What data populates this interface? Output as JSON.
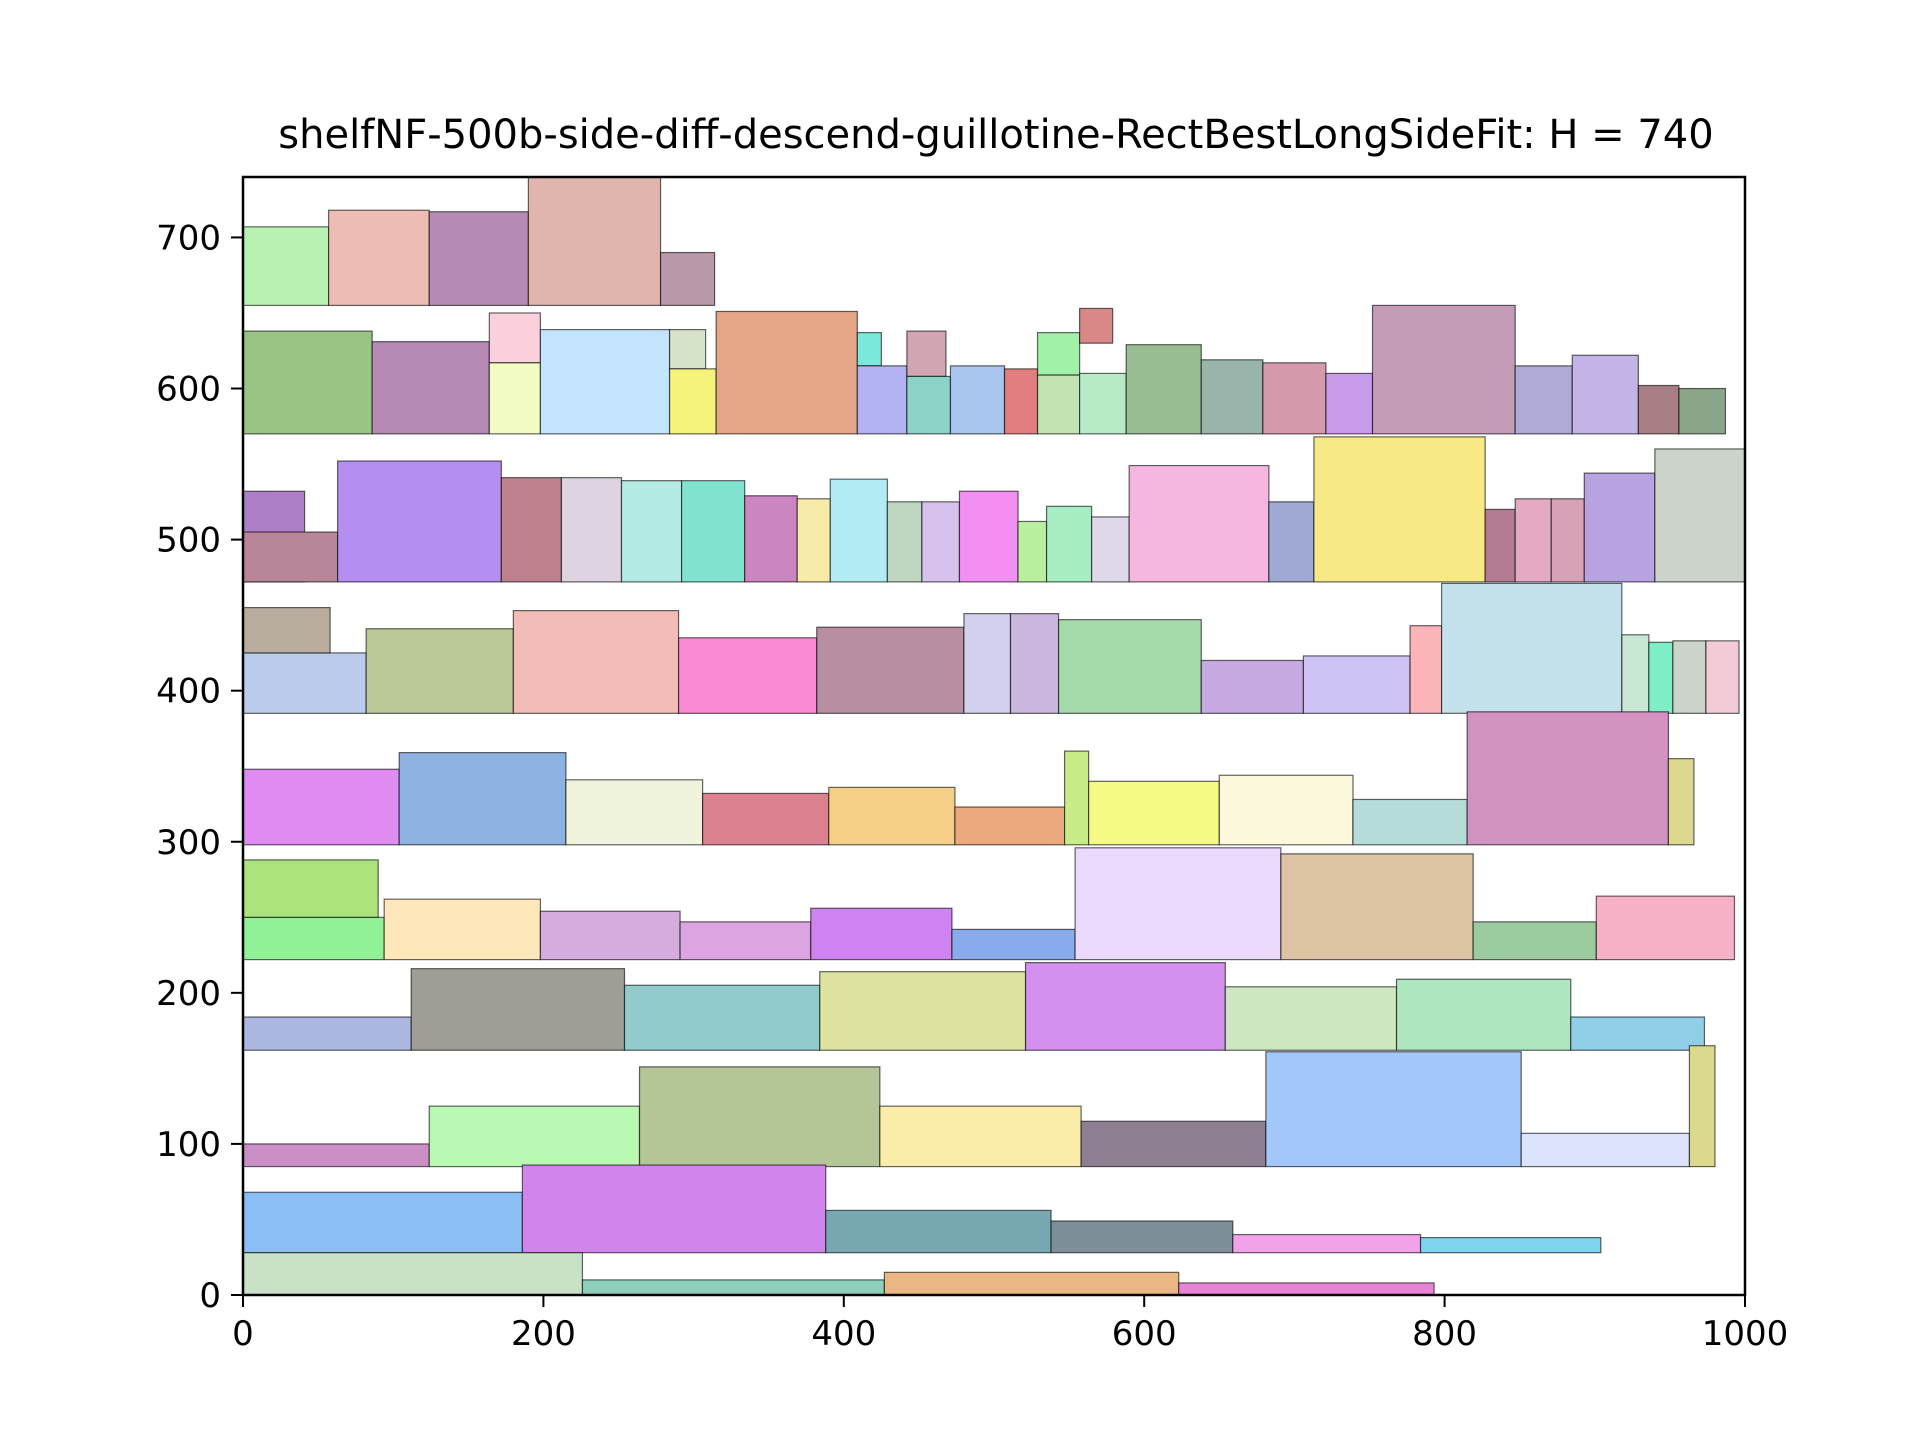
{
  "chart_data": {
    "type": "rectangle-packing",
    "title": "shelfNF-500b-side-diff-descend-guillotine-RectBestLongSideFit: H = 740",
    "xlabel": "",
    "ylabel": "",
    "xlim": [
      0,
      1000
    ],
    "ylim": [
      0,
      740
    ],
    "x_ticks": [
      "0",
      "200",
      "400",
      "600",
      "800",
      "1000"
    ],
    "y_ticks": [
      "0",
      "100",
      "200",
      "300",
      "400",
      "500",
      "600",
      "700"
    ],
    "grid": false,
    "rects": [
      {
        "x": 0,
        "y": 655,
        "w": 57,
        "h": 52,
        "color": "#b7f2b2"
      },
      {
        "x": 57,
        "y": 655,
        "w": 67,
        "h": 63,
        "color": "#edbcb4"
      },
      {
        "x": 124,
        "y": 655,
        "w": 66,
        "h": 62,
        "color": "#b58bb6"
      },
      {
        "x": 190,
        "y": 655,
        "w": 88,
        "h": 85,
        "color": "#dfb5ae"
      },
      {
        "x": 278,
        "y": 655,
        "w": 36,
        "h": 35,
        "color": "#b898a9"
      },
      {
        "x": 0,
        "y": 570,
        "w": 86,
        "h": 68,
        "color": "#98c583"
      },
      {
        "x": 86,
        "y": 570,
        "w": 78,
        "h": 61,
        "color": "#b58bb6"
      },
      {
        "x": 164,
        "y": 617,
        "w": 34,
        "h": 33,
        "color": "#f9d0dc"
      },
      {
        "x": 164,
        "y": 570,
        "w": 34,
        "h": 47,
        "color": "#f2fbc3"
      },
      {
        "x": 198,
        "y": 570,
        "w": 86,
        "h": 69,
        "color": "#c3e3fe"
      },
      {
        "x": 284,
        "y": 613,
        "w": 24,
        "h": 26,
        "color": "#d6e3c8"
      },
      {
        "x": 284,
        "y": 570,
        "w": 31,
        "h": 43,
        "color": "#f6f37c"
      },
      {
        "x": 315,
        "y": 570,
        "w": 94,
        "h": 81,
        "color": "#e4a686"
      },
      {
        "x": 409,
        "y": 615,
        "w": 16,
        "h": 22,
        "color": "#7ce8dc"
      },
      {
        "x": 409,
        "y": 570,
        "w": 33,
        "h": 45,
        "color": "#b3b3f2"
      },
      {
        "x": 442,
        "y": 608,
        "w": 26,
        "h": 30,
        "color": "#d2a5b3"
      },
      {
        "x": 442,
        "y": 570,
        "w": 29,
        "h": 38,
        "color": "#8bd3c6"
      },
      {
        "x": 471,
        "y": 570,
        "w": 36,
        "h": 45,
        "color": "#a8c6ee"
      },
      {
        "x": 507,
        "y": 570,
        "w": 22,
        "h": 43,
        "color": "#e27d80"
      },
      {
        "x": 529,
        "y": 570,
        "w": 28,
        "h": 39,
        "color": "#c2e4b2"
      },
      {
        "x": 529,
        "y": 609,
        "w": 28,
        "h": 28,
        "color": "#a2f1a9"
      },
      {
        "x": 557,
        "y": 570,
        "w": 31,
        "h": 40,
        "color": "#b7ebc8"
      },
      {
        "x": 557,
        "y": 630,
        "w": 22,
        "h": 23,
        "color": "#d98888"
      },
      {
        "x": 588,
        "y": 570,
        "w": 50,
        "h": 59,
        "color": "#99bd93"
      },
      {
        "x": 638,
        "y": 570,
        "w": 41,
        "h": 49,
        "color": "#99b4aa"
      },
      {
        "x": 679,
        "y": 570,
        "w": 42,
        "h": 47,
        "color": "#d59bac"
      },
      {
        "x": 721,
        "y": 570,
        "w": 31,
        "h": 40,
        "color": "#c89be8"
      },
      {
        "x": 752,
        "y": 570,
        "w": 95,
        "h": 85,
        "color": "#c59cb7"
      },
      {
        "x": 847,
        "y": 570,
        "w": 38,
        "h": 45,
        "color": "#aeacd4"
      },
      {
        "x": 885,
        "y": 570,
        "w": 44,
        "h": 52,
        "color": "#c4b3e6"
      },
      {
        "x": 929,
        "y": 570,
        "w": 27,
        "h": 32,
        "color": "#a87f85"
      },
      {
        "x": 956,
        "y": 570,
        "w": 31,
        "h": 30,
        "color": "#8aa58a"
      },
      {
        "x": 0,
        "y": 472,
        "w": 41,
        "h": 60,
        "color": "#ad7fc7"
      },
      {
        "x": 0,
        "y": 472,
        "w": 63,
        "h": 33,
        "color": "#b98699"
      },
      {
        "x": 63,
        "y": 472,
        "w": 109,
        "h": 80,
        "color": "#b48ef0"
      },
      {
        "x": 172,
        "y": 472,
        "w": 40,
        "h": 69,
        "color": "#bf818d"
      },
      {
        "x": 212,
        "y": 472,
        "w": 40,
        "h": 69,
        "color": "#ddd3e1"
      },
      {
        "x": 252,
        "y": 472,
        "w": 40,
        "h": 67,
        "color": "#b4ebe2"
      },
      {
        "x": 292,
        "y": 472,
        "w": 42,
        "h": 67,
        "color": "#83e3d1"
      },
      {
        "x": 334,
        "y": 472,
        "w": 35,
        "h": 57,
        "color": "#cb85c0"
      },
      {
        "x": 369,
        "y": 472,
        "w": 22,
        "h": 55,
        "color": "#f7ebaa"
      },
      {
        "x": 391,
        "y": 472,
        "w": 38,
        "h": 68,
        "color": "#b3ebf5"
      },
      {
        "x": 429,
        "y": 472,
        "w": 23,
        "h": 53,
        "color": "#bfd7c0"
      },
      {
        "x": 452,
        "y": 472,
        "w": 25,
        "h": 53,
        "color": "#d7c2ee"
      },
      {
        "x": 477,
        "y": 472,
        "w": 39,
        "h": 60,
        "color": "#f38ef2"
      },
      {
        "x": 516,
        "y": 472,
        "w": 19,
        "h": 40,
        "color": "#b9ef9e"
      },
      {
        "x": 535,
        "y": 472,
        "w": 30,
        "h": 50,
        "color": "#a7edc4"
      },
      {
        "x": 565,
        "y": 472,
        "w": 25,
        "h": 43,
        "color": "#ded8ea"
      },
      {
        "x": 590,
        "y": 472,
        "w": 93,
        "h": 77,
        "color": "#f5b6e0"
      },
      {
        "x": 683,
        "y": 472,
        "w": 30,
        "h": 53,
        "color": "#9fa9d4"
      },
      {
        "x": 713,
        "y": 472,
        "w": 114,
        "h": 96,
        "color": "#f7e986"
      },
      {
        "x": 827,
        "y": 472,
        "w": 20,
        "h": 48,
        "color": "#b47c93"
      },
      {
        "x": 847,
        "y": 472,
        "w": 24,
        "h": 55,
        "color": "#e4a9c3"
      },
      {
        "x": 871,
        "y": 472,
        "w": 22,
        "h": 55,
        "color": "#d7a1b6"
      },
      {
        "x": 893,
        "y": 472,
        "w": 47,
        "h": 72,
        "color": "#b8a3e1"
      },
      {
        "x": 940,
        "y": 472,
        "w": 60,
        "h": 88,
        "color": "#ccd3ca"
      },
      {
        "x": 0,
        "y": 385,
        "w": 82,
        "h": 40,
        "color": "#bbcbec"
      },
      {
        "x": 0,
        "y": 425,
        "w": 58,
        "h": 30,
        "color": "#b8ad9e"
      },
      {
        "x": 82,
        "y": 385,
        "w": 98,
        "h": 56,
        "color": "#bbc897"
      },
      {
        "x": 180,
        "y": 385,
        "w": 110,
        "h": 68,
        "color": "#f2bcb8"
      },
      {
        "x": 290,
        "y": 385,
        "w": 92,
        "h": 50,
        "color": "#f98ad3"
      },
      {
        "x": 382,
        "y": 385,
        "w": 98,
        "h": 57,
        "color": "#b88ea3"
      },
      {
        "x": 480,
        "y": 385,
        "w": 31,
        "h": 66,
        "color": "#d3cfee"
      },
      {
        "x": 511,
        "y": 385,
        "w": 32,
        "h": 66,
        "color": "#cbb6dd"
      },
      {
        "x": 543,
        "y": 385,
        "w": 95,
        "h": 62,
        "color": "#a5dbab"
      },
      {
        "x": 638,
        "y": 385,
        "w": 68,
        "h": 35,
        "color": "#c7aae4"
      },
      {
        "x": 706,
        "y": 385,
        "w": 71,
        "h": 38,
        "color": "#cfc3f5"
      },
      {
        "x": 777,
        "y": 385,
        "w": 21,
        "h": 58,
        "color": "#fbb5b9"
      },
      {
        "x": 798,
        "y": 385,
        "w": 120,
        "h": 86,
        "color": "#c4e2ec"
      },
      {
        "x": 918,
        "y": 385,
        "w": 18,
        "h": 52,
        "color": "#c9e8d3"
      },
      {
        "x": 936,
        "y": 385,
        "w": 16,
        "h": 47,
        "color": "#7eeec7"
      },
      {
        "x": 952,
        "y": 385,
        "w": 22,
        "h": 48,
        "color": "#ccd3ca"
      },
      {
        "x": 974,
        "y": 385,
        "w": 22,
        "h": 48,
        "color": "#f2cbd7"
      },
      {
        "x": 0,
        "y": 298,
        "w": 104,
        "h": 50,
        "color": "#df8bf1"
      },
      {
        "x": 104,
        "y": 298,
        "w": 111,
        "h": 61,
        "color": "#8eb3e2"
      },
      {
        "x": 215,
        "y": 298,
        "w": 91,
        "h": 43,
        "color": "#f1f4dc"
      },
      {
        "x": 306,
        "y": 298,
        "w": 84,
        "h": 34,
        "color": "#dc818f"
      },
      {
        "x": 390,
        "y": 298,
        "w": 84,
        "h": 38,
        "color": "#f5cf87"
      },
      {
        "x": 474,
        "y": 298,
        "w": 73,
        "h": 25,
        "color": "#eda97e"
      },
      {
        "x": 547,
        "y": 298,
        "w": 16,
        "h": 62,
        "color": "#c8ec88"
      },
      {
        "x": 563,
        "y": 298,
        "w": 87,
        "h": 42,
        "color": "#f4fa84"
      },
      {
        "x": 650,
        "y": 298,
        "w": 89,
        "h": 46,
        "color": "#fbf8dc"
      },
      {
        "x": 739,
        "y": 298,
        "w": 76,
        "h": 30,
        "color": "#b6dcda"
      },
      {
        "x": 815,
        "y": 298,
        "w": 134,
        "h": 88,
        "color": "#d192c2"
      },
      {
        "x": 949,
        "y": 298,
        "w": 17,
        "h": 57,
        "color": "#dcd98e"
      },
      {
        "x": 0,
        "y": 222,
        "w": 94,
        "h": 28,
        "color": "#90f196"
      },
      {
        "x": 0,
        "y": 250,
        "w": 90,
        "h": 38,
        "color": "#ace37c"
      },
      {
        "x": 94,
        "y": 222,
        "w": 104,
        "h": 40,
        "color": "#fee7bb"
      },
      {
        "x": 198,
        "y": 222,
        "w": 93,
        "h": 32,
        "color": "#d4acdd"
      },
      {
        "x": 291,
        "y": 222,
        "w": 87,
        "h": 25,
        "color": "#dca5e2"
      },
      {
        "x": 378,
        "y": 222,
        "w": 94,
        "h": 34,
        "color": "#cf83f0"
      },
      {
        "x": 472,
        "y": 222,
        "w": 82,
        "h": 20,
        "color": "#89abeb"
      },
      {
        "x": 554,
        "y": 222,
        "w": 137,
        "h": 74,
        "color": "#ecdafe"
      },
      {
        "x": 691,
        "y": 222,
        "w": 128,
        "h": 70,
        "color": "#dbc3a4"
      },
      {
        "x": 819,
        "y": 222,
        "w": 82,
        "h": 25,
        "color": "#9bcb9e"
      },
      {
        "x": 901,
        "y": 222,
        "w": 92,
        "h": 42,
        "color": "#f7b1c6"
      },
      {
        "x": 0,
        "y": 162,
        "w": 112,
        "h": 22,
        "color": "#adb8e2"
      },
      {
        "x": 112,
        "y": 162,
        "w": 142,
        "h": 54,
        "color": "#9e9e97"
      },
      {
        "x": 254,
        "y": 162,
        "w": 130,
        "h": 43,
        "color": "#91cbcc"
      },
      {
        "x": 384,
        "y": 162,
        "w": 137,
        "h": 52,
        "color": "#dee3a2"
      },
      {
        "x": 521,
        "y": 162,
        "w": 133,
        "h": 58,
        "color": "#d390ee"
      },
      {
        "x": 654,
        "y": 162,
        "w": 114,
        "h": 42,
        "color": "#cee7c0"
      },
      {
        "x": 768,
        "y": 162,
        "w": 116,
        "h": 47,
        "color": "#aee6bf"
      },
      {
        "x": 884,
        "y": 162,
        "w": 89,
        "h": 22,
        "color": "#91cfe8"
      },
      {
        "x": 0,
        "y": 85,
        "w": 124,
        "h": 15,
        "color": "#ca8fc4"
      },
      {
        "x": 124,
        "y": 85,
        "w": 140,
        "h": 40,
        "color": "#b9f8b3"
      },
      {
        "x": 264,
        "y": 85,
        "w": 160,
        "h": 66,
        "color": "#b4c597"
      },
      {
        "x": 424,
        "y": 85,
        "w": 134,
        "h": 40,
        "color": "#fcecaa"
      },
      {
        "x": 558,
        "y": 85,
        "w": 123,
        "h": 30,
        "color": "#8d7e92"
      },
      {
        "x": 681,
        "y": 85,
        "w": 170,
        "h": 76,
        "color": "#a4c7f9"
      },
      {
        "x": 851,
        "y": 85,
        "w": 112,
        "h": 22,
        "color": "#dce4fd"
      },
      {
        "x": 963,
        "y": 85,
        "w": 17,
        "h": 80,
        "color": "#dbd98b"
      },
      {
        "x": 0,
        "y": 28,
        "w": 186,
        "h": 40,
        "color": "#8abef5"
      },
      {
        "x": 186,
        "y": 28,
        "w": 202,
        "h": 58,
        "color": "#d185ec"
      },
      {
        "x": 388,
        "y": 28,
        "w": 150,
        "h": 28,
        "color": "#77a8b1"
      },
      {
        "x": 538,
        "y": 28,
        "w": 121,
        "h": 21,
        "color": "#7e8e98"
      },
      {
        "x": 659,
        "y": 28,
        "w": 125,
        "h": 12,
        "color": "#f2a2e8"
      },
      {
        "x": 784,
        "y": 28,
        "w": 120,
        "h": 10,
        "color": "#7fd4ee"
      },
      {
        "x": 0,
        "y": 0,
        "w": 226,
        "h": 28,
        "color": "#c9e1c7"
      },
      {
        "x": 226,
        "y": 0,
        "w": 201,
        "h": 10,
        "color": "#8ed0bc"
      },
      {
        "x": 427,
        "y": 0,
        "w": 196,
        "h": 15,
        "color": "#eab784"
      },
      {
        "x": 623,
        "y": 0,
        "w": 170,
        "h": 8,
        "color": "#e784d6"
      }
    ]
  }
}
